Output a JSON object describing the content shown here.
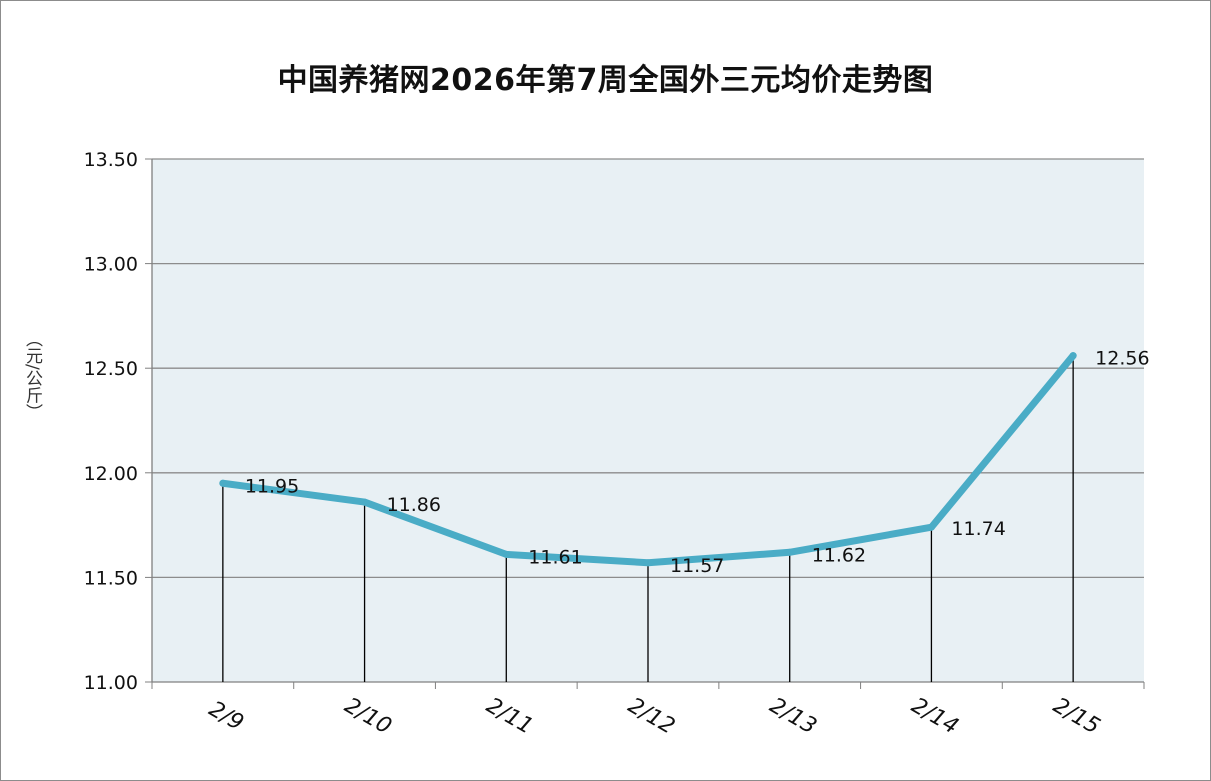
{
  "chart_data": {
    "type": "line",
    "title": "中国养猪网2026年第7周全国外三元均价走势图",
    "xlabel": "",
    "ylabel": "（元/公斤）",
    "categories": [
      "2/9",
      "2/10",
      "2/11",
      "2/12",
      "2/13",
      "2/14",
      "2/15"
    ],
    "series": [
      {
        "values": [
          11.95,
          11.86,
          11.61,
          11.57,
          11.62,
          11.74,
          12.56
        ],
        "data_labels": [
          "11.95",
          "11.86",
          "11.61",
          "11.57",
          "11.62",
          "11.74",
          "12.56"
        ]
      }
    ],
    "ylim": [
      11.0,
      13.5
    ],
    "yticks": [
      "11.00",
      "11.50",
      "12.00",
      "12.50",
      "13.00",
      "13.50"
    ],
    "grid": true,
    "drop_lines": true,
    "legend": "none",
    "colors": {
      "line": "#4aacc6",
      "plot_background": "#e8f0f4",
      "gridline": "#8c8c8c",
      "axis": "#808080",
      "drop_line": "#000000",
      "text": "#111111"
    }
  }
}
